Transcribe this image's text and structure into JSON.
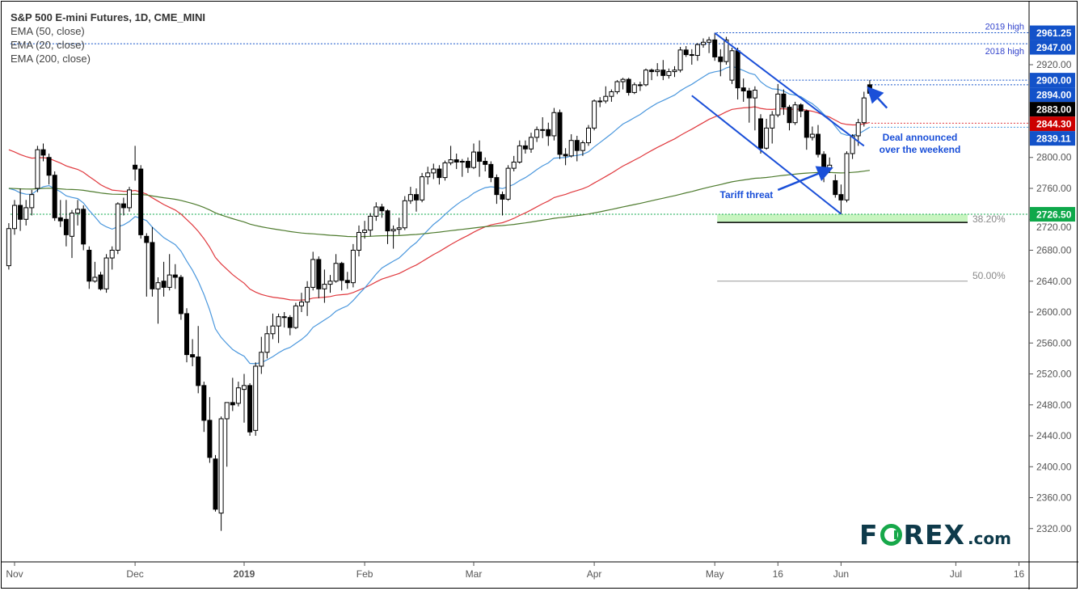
{
  "chart_data": {
    "type": "candlestick",
    "title": "S&P 500 E-mini Futures, 1D, CME_MINI",
    "legend": [
      "EMA (50, close)",
      "EMA (20, close)",
      "EMA (200, close)"
    ],
    "ylim": [
      2280,
      2985
    ],
    "y_ticks": [
      2320,
      2360,
      2400,
      2440,
      2480,
      2520,
      2560,
      2600,
      2640,
      2680,
      2720,
      2760,
      2800,
      2920
    ],
    "x_ticks": [
      {
        "label": "Nov",
        "date": "2018-11-01"
      },
      {
        "label": "Dec",
        "date": "2018-12-03"
      },
      {
        "label": "2019",
        "date": "2019-01-02"
      },
      {
        "label": "Feb",
        "date": "2019-02-01"
      },
      {
        "label": "Mar",
        "date": "2019-03-01"
      },
      {
        "label": "Apr",
        "date": "2019-04-01"
      },
      {
        "label": "May",
        "date": "2019-05-01"
      },
      {
        "label": "16",
        "date": "2019-05-16"
      },
      {
        "label": "Jun",
        "date": "2019-06-03"
      },
      {
        "label": "Jul",
        "date": "2019-07-01"
      },
      {
        "label": "16",
        "date": "2019-07-16"
      }
    ],
    "candle_fields": [
      "date",
      "open",
      "high",
      "low",
      "close"
    ],
    "candles": [
      [
        "2018-10-31",
        2660,
        2715,
        2655,
        2708
      ],
      [
        "2018-11-01",
        2708,
        2745,
        2700,
        2738
      ],
      [
        "2018-11-02",
        2738,
        2760,
        2705,
        2720
      ],
      [
        "2018-11-05",
        2720,
        2745,
        2712,
        2735
      ],
      [
        "2018-11-06",
        2735,
        2758,
        2725,
        2752
      ],
      [
        "2018-11-07",
        2760,
        2815,
        2755,
        2810
      ],
      [
        "2018-11-08",
        2810,
        2818,
        2795,
        2803
      ],
      [
        "2018-11-09",
        2800,
        2805,
        2765,
        2777
      ],
      [
        "2018-11-12",
        2777,
        2782,
        2718,
        2722
      ],
      [
        "2018-11-13",
        2722,
        2745,
        2710,
        2718
      ],
      [
        "2018-11-14",
        2720,
        2745,
        2685,
        2700
      ],
      [
        "2018-11-15",
        2698,
        2732,
        2670,
        2728
      ],
      [
        "2018-11-16",
        2728,
        2745,
        2712,
        2733
      ],
      [
        "2018-11-19",
        2733,
        2738,
        2680,
        2688
      ],
      [
        "2018-11-20",
        2680,
        2685,
        2630,
        2640
      ],
      [
        "2018-11-21",
        2640,
        2665,
        2638,
        2645
      ],
      [
        "2018-11-23",
        2648,
        2652,
        2628,
        2630
      ],
      [
        "2018-11-26",
        2630,
        2675,
        2625,
        2670
      ],
      [
        "2018-11-27",
        2670,
        2685,
        2655,
        2680
      ],
      [
        "2018-11-28",
        2680,
        2742,
        2675,
        2740
      ],
      [
        "2018-11-29",
        2740,
        2748,
        2725,
        2735
      ],
      [
        "2018-11-30",
        2735,
        2762,
        2730,
        2758
      ],
      [
        "2018-12-03",
        2790,
        2815,
        2770,
        2785
      ],
      [
        "2018-12-04",
        2785,
        2790,
        2695,
        2700
      ],
      [
        "2018-12-06",
        2698,
        2702,
        2620,
        2690
      ],
      [
        "2018-12-07",
        2690,
        2710,
        2620,
        2630
      ],
      [
        "2018-12-10",
        2630,
        2645,
        2585,
        2638
      ],
      [
        "2018-12-11",
        2640,
        2665,
        2620,
        2632
      ],
      [
        "2018-12-12",
        2632,
        2675,
        2628,
        2648
      ],
      [
        "2018-12-13",
        2648,
        2662,
        2630,
        2645
      ],
      [
        "2018-12-14",
        2645,
        2648,
        2590,
        2598
      ],
      [
        "2018-12-17",
        2598,
        2605,
        2535,
        2545
      ],
      [
        "2018-12-18",
        2545,
        2565,
        2530,
        2542
      ],
      [
        "2018-12-19",
        2542,
        2582,
        2495,
        2505
      ],
      [
        "2018-12-20",
        2505,
        2510,
        2445,
        2460
      ],
      [
        "2018-12-21",
        2460,
        2490,
        2405,
        2412
      ],
      [
        "2018-12-24",
        2410,
        2415,
        2342,
        2345
      ],
      [
        "2018-12-26",
        2340,
        2465,
        2317,
        2462
      ],
      [
        "2018-12-27",
        2462,
        2480,
        2400,
        2483
      ],
      [
        "2018-12-28",
        2483,
        2515,
        2472,
        2480
      ],
      [
        "2018-12-31",
        2482,
        2510,
        2478,
        2502
      ],
      [
        "2019-01-02",
        2500,
        2520,
        2457,
        2505
      ],
      [
        "2019-01-03",
        2505,
        2508,
        2440,
        2445
      ],
      [
        "2019-01-04",
        2447,
        2535,
        2440,
        2530
      ],
      [
        "2019-01-07",
        2530,
        2568,
        2520,
        2548
      ],
      [
        "2019-01-08",
        2548,
        2582,
        2540,
        2572
      ],
      [
        "2019-01-09",
        2572,
        2598,
        2565,
        2582
      ],
      [
        "2019-01-10",
        2582,
        2598,
        2560,
        2594
      ],
      [
        "2019-01-11",
        2594,
        2600,
        2580,
        2593
      ],
      [
        "2019-01-14",
        2593,
        2596,
        2570,
        2580
      ],
      [
        "2019-01-15",
        2580,
        2612,
        2578,
        2608
      ],
      [
        "2019-01-16",
        2608,
        2625,
        2600,
        2613
      ],
      [
        "2019-01-17",
        2613,
        2640,
        2595,
        2632
      ],
      [
        "2019-01-18",
        2632,
        2678,
        2628,
        2668
      ],
      [
        "2019-01-22",
        2668,
        2672,
        2618,
        2630
      ],
      [
        "2019-01-23",
        2630,
        2655,
        2612,
        2636
      ],
      [
        "2019-01-24",
        2636,
        2648,
        2625,
        2640
      ],
      [
        "2019-01-25",
        2640,
        2675,
        2638,
        2663
      ],
      [
        "2019-01-28",
        2663,
        2665,
        2628,
        2641
      ],
      [
        "2019-01-29",
        2641,
        2652,
        2630,
        2638
      ],
      [
        "2019-01-30",
        2638,
        2688,
        2632,
        2680
      ],
      [
        "2019-01-31",
        2680,
        2712,
        2672,
        2703
      ],
      [
        "2019-02-01",
        2703,
        2718,
        2695,
        2706
      ],
      [
        "2019-02-04",
        2706,
        2728,
        2698,
        2724
      ],
      [
        "2019-02-05",
        2724,
        2742,
        2718,
        2736
      ],
      [
        "2019-02-06",
        2736,
        2740,
        2722,
        2731
      ],
      [
        "2019-02-07",
        2731,
        2733,
        2688,
        2705
      ],
      [
        "2019-02-08",
        2705,
        2712,
        2682,
        2707
      ],
      [
        "2019-02-11",
        2707,
        2722,
        2700,
        2709
      ],
      [
        "2019-02-12",
        2709,
        2750,
        2706,
        2744
      ],
      [
        "2019-02-13",
        2744,
        2762,
        2740,
        2752
      ],
      [
        "2019-02-14",
        2752,
        2760,
        2730,
        2745
      ],
      [
        "2019-02-15",
        2745,
        2780,
        2742,
        2775
      ],
      [
        "2019-02-19",
        2775,
        2788,
        2765,
        2780
      ],
      [
        "2019-02-20",
        2780,
        2792,
        2772,
        2785
      ],
      [
        "2019-02-21",
        2785,
        2790,
        2765,
        2774
      ],
      [
        "2019-02-22",
        2774,
        2796,
        2770,
        2793
      ],
      [
        "2019-02-25",
        2793,
        2815,
        2790,
        2797
      ],
      [
        "2019-02-26",
        2797,
        2805,
        2785,
        2794
      ],
      [
        "2019-02-27",
        2794,
        2798,
        2775,
        2795
      ],
      [
        "2019-02-28",
        2795,
        2800,
        2780,
        2787
      ],
      [
        "2019-03-01",
        2787,
        2818,
        2785,
        2807
      ],
      [
        "2019-03-04",
        2807,
        2822,
        2775,
        2795
      ],
      [
        "2019-03-05",
        2795,
        2800,
        2782,
        2791
      ],
      [
        "2019-03-06",
        2791,
        2795,
        2768,
        2774
      ],
      [
        "2019-03-07",
        2774,
        2778,
        2740,
        2752
      ],
      [
        "2019-03-08",
        2752,
        2756,
        2725,
        2746
      ],
      [
        "2019-03-11",
        2746,
        2790,
        2744,
        2786
      ],
      [
        "2019-03-12",
        2786,
        2802,
        2782,
        2794
      ],
      [
        "2019-03-13",
        2794,
        2822,
        2792,
        2815
      ],
      [
        "2019-03-14",
        2815,
        2822,
        2805,
        2811
      ],
      [
        "2019-03-15",
        2811,
        2832,
        2806,
        2826
      ],
      [
        "2019-03-18",
        2826,
        2840,
        2820,
        2836
      ],
      [
        "2019-03-19",
        2836,
        2852,
        2825,
        2836
      ],
      [
        "2019-03-20",
        2836,
        2845,
        2815,
        2828
      ],
      [
        "2019-03-21",
        2828,
        2864,
        2822,
        2858
      ],
      [
        "2019-03-22",
        2858,
        2862,
        2798,
        2804
      ],
      [
        "2019-03-25",
        2804,
        2812,
        2790,
        2802
      ],
      [
        "2019-03-26",
        2802,
        2830,
        2800,
        2822
      ],
      [
        "2019-03-27",
        2822,
        2828,
        2795,
        2809
      ],
      [
        "2019-03-28",
        2809,
        2822,
        2802,
        2819
      ],
      [
        "2019-03-29",
        2819,
        2842,
        2815,
        2838
      ],
      [
        "2019-04-01",
        2838,
        2875,
        2835,
        2873
      ],
      [
        "2019-04-02",
        2873,
        2878,
        2865,
        2873
      ],
      [
        "2019-04-03",
        2873,
        2892,
        2870,
        2879
      ],
      [
        "2019-04-04",
        2879,
        2888,
        2872,
        2885
      ],
      [
        "2019-04-05",
        2885,
        2900,
        2882,
        2898
      ],
      [
        "2019-04-08",
        2898,
        2903,
        2888,
        2901
      ],
      [
        "2019-04-09",
        2901,
        2903,
        2880,
        2884
      ],
      [
        "2019-04-10",
        2884,
        2897,
        2882,
        2894
      ],
      [
        "2019-04-11",
        2894,
        2898,
        2886,
        2894
      ],
      [
        "2019-04-12",
        2894,
        2915,
        2892,
        2913
      ],
      [
        "2019-04-15",
        2913,
        2915,
        2900,
        2911
      ],
      [
        "2019-04-16",
        2911,
        2922,
        2905,
        2913
      ],
      [
        "2019-04-17",
        2913,
        2926,
        2900,
        2906
      ],
      [
        "2019-04-18",
        2906,
        2915,
        2902,
        2911
      ],
      [
        "2019-04-22",
        2911,
        2918,
        2904,
        2913
      ],
      [
        "2019-04-23",
        2913,
        2943,
        2910,
        2939
      ],
      [
        "2019-04-24",
        2939,
        2944,
        2930,
        2933
      ],
      [
        "2019-04-25",
        2933,
        2940,
        2920,
        2932
      ],
      [
        "2019-04-26",
        2932,
        2948,
        2925,
        2946
      ],
      [
        "2019-04-29",
        2946,
        2954,
        2942,
        2949
      ],
      [
        "2019-04-30",
        2949,
        2956,
        2935,
        2952
      ],
      [
        "2019-05-01",
        2952,
        2961.25,
        2925,
        2930
      ],
      [
        "2019-05-02",
        2930,
        2940,
        2905,
        2924
      ],
      [
        "2019-05-03",
        2924,
        2956,
        2920,
        2952
      ],
      [
        "2019-05-06",
        2900,
        2942,
        2895,
        2938
      ],
      [
        "2019-05-07",
        2938,
        2942,
        2875,
        2890
      ],
      [
        "2019-05-08",
        2890,
        2902,
        2872,
        2886
      ],
      [
        "2019-05-09",
        2886,
        2890,
        2845,
        2877
      ],
      [
        "2019-05-10",
        2877,
        2892,
        2835,
        2887
      ],
      [
        "2019-05-13",
        2850,
        2856,
        2805,
        2812
      ],
      [
        "2019-05-14",
        2812,
        2850,
        2810,
        2838
      ],
      [
        "2019-05-15",
        2838,
        2860,
        2818,
        2855
      ],
      [
        "2019-05-16",
        2855,
        2895,
        2852,
        2882
      ],
      [
        "2019-05-17",
        2882,
        2888,
        2855,
        2865
      ],
      [
        "2019-05-20",
        2865,
        2868,
        2835,
        2845
      ],
      [
        "2019-05-21",
        2845,
        2872,
        2842,
        2868
      ],
      [
        "2019-05-22",
        2868,
        2870,
        2852,
        2860
      ],
      [
        "2019-05-23",
        2860,
        2862,
        2810,
        2826
      ],
      [
        "2019-05-24",
        2826,
        2840,
        2822,
        2830
      ],
      [
        "2019-05-28",
        2830,
        2842,
        2800,
        2804
      ],
      [
        "2019-05-29",
        2804,
        2808,
        2768,
        2786
      ],
      [
        "2019-05-30",
        2786,
        2800,
        2780,
        2790
      ],
      [
        "2019-05-31",
        2770,
        2778,
        2748,
        2752
      ],
      [
        "2019-06-03",
        2752,
        2765,
        2726.5,
        2745
      ],
      [
        "2019-06-04",
        2745,
        2808,
        2742,
        2805
      ],
      [
        "2019-06-05",
        2805,
        2830,
        2798,
        2828
      ],
      [
        "2019-06-06",
        2828,
        2850,
        2815,
        2845
      ],
      [
        "2019-06-07",
        2845,
        2885,
        2840,
        2877
      ],
      [
        "2019-06-10",
        2894,
        2900,
        2880,
        2883
      ]
    ],
    "ema_series": [
      {
        "name": "EMA (50, close)",
        "period": 50,
        "first_value": 2810,
        "color": "#e0393e"
      },
      {
        "name": "EMA (20, close)",
        "period": 20,
        "first_value": 2760,
        "color": "#4a97dd"
      },
      {
        "name": "EMA (200, close)",
        "period": 200,
        "first_value": 2760,
        "color": "#4e7b2e"
      }
    ],
    "price_labels": [
      {
        "value": "2961.25",
        "level": 2961.25,
        "bg": "#1352c9",
        "fg": "#ffffff",
        "line": "#1352c9",
        "from": "2019-05-01",
        "note": "2019 high"
      },
      {
        "value": "2947.00",
        "level": 2947,
        "bg": "#1352c9",
        "fg": "#ffffff",
        "line": "#1352c9",
        "from": "2018-10-31",
        "note": "2018 high"
      },
      {
        "value": "2900.00",
        "level": 2900,
        "bg": "#1352c9",
        "fg": "#ffffff",
        "line": "#1352c9",
        "from": "2019-05-16",
        "note": ""
      },
      {
        "value": "2894.00",
        "level": 2894,
        "bg": "#1352c9",
        "fg": "#ffffff",
        "line": "#1352c9",
        "from": "2019-06-10",
        "note": ""
      },
      {
        "value": "2883.00",
        "level": 2883,
        "bg": "#000000",
        "fg": "#ffffff",
        "line": "",
        "from": "",
        "note": ""
      },
      {
        "value": "2844.30",
        "level": 2844.3,
        "bg": "#cc0000",
        "fg": "#ffffff",
        "line": "#e0393e",
        "from": "2019-06-10",
        "note": ""
      },
      {
        "value": "2839.11",
        "level": 2839.11,
        "bg": "#1352c9",
        "fg": "#ffffff",
        "line": "#4a97dd",
        "from": "2019-06-10",
        "note": ""
      },
      {
        "value": "2726.50",
        "level": 2726.5,
        "bg": "#0ea84a",
        "fg": "#ffffff",
        "line": "#0ea84a",
        "from": "2018-10-31",
        "note": ""
      }
    ],
    "fib_levels": [
      {
        "label": "38.20%",
        "level": 2716,
        "zone_top": 2726.5,
        "zone_color": "#c8f5c0"
      },
      {
        "label": "50.00%",
        "level": 2640,
        "zone_top": null,
        "zone_color": null
      }
    ],
    "channel": {
      "upper": [
        [
          "2019-05-01",
          2961
        ],
        [
          "2019-06-07",
          2815
        ]
      ],
      "lower": [
        [
          "2019-04-25",
          2880
        ],
        [
          "2019-06-03",
          2727
        ]
      ],
      "color": "#1a4fd8"
    },
    "annotations": [
      {
        "text": "Tariff threat",
        "arrow_from": [
          "2019-05-16",
          2758
        ],
        "arrow_to": [
          "2019-05-30",
          2785
        ]
      },
      {
        "text": "Deal announced",
        "text2": "over the weekend",
        "arrow_from": [
          "2019-06-13",
          2864
        ],
        "arrow_to": [
          "2019-06-10",
          2888
        ]
      }
    ]
  },
  "branding": {
    "logo_text": "FOREX.com"
  }
}
